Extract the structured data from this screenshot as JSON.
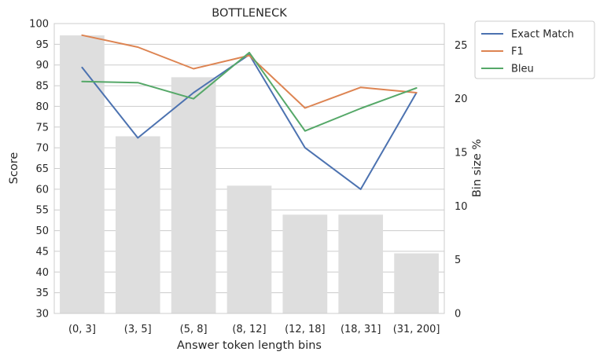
{
  "chart_data": {
    "type": "bar+line",
    "title": "BOTTLENECK",
    "xlabel": "Answer token length bins",
    "ylabel": "Score",
    "y2label": "Bin size %",
    "categories": [
      "(0, 3]",
      "(3, 5]",
      "(5, 8]",
      "(8, 12]",
      "(12, 18]",
      "(18, 31]",
      "(31, 200]"
    ],
    "ylim": [
      30,
      100
    ],
    "yticks": [
      30,
      35,
      40,
      45,
      50,
      55,
      60,
      65,
      70,
      75,
      80,
      85,
      90,
      95,
      100
    ],
    "y2lim": [
      0,
      27
    ],
    "y2ticks": [
      0,
      5,
      10,
      15,
      20,
      25
    ],
    "grid": true,
    "legend_position": "outside-top-right",
    "bars": {
      "axis": "right",
      "color": "#dedede",
      "values": [
        25.9,
        16.5,
        22.0,
        11.9,
        9.2,
        9.2,
        5.6
      ]
    },
    "series": [
      {
        "name": "Exact Match",
        "color": "#4c72b0",
        "values": [
          89.4,
          72.4,
          83.3,
          92.5,
          70.0,
          60.0,
          83.3
        ]
      },
      {
        "name": "F1",
        "color": "#dd8452",
        "values": [
          97.2,
          94.3,
          89.1,
          92.3,
          79.6,
          84.6,
          83.3
        ]
      },
      {
        "name": "Bleu",
        "color": "#55a868",
        "values": [
          21.6,
          21.5,
          20.0,
          24.3,
          17.0,
          19.1,
          21.0
        ]
      }
    ],
    "series_axes": [
      "left",
      "left",
      "right"
    ]
  }
}
